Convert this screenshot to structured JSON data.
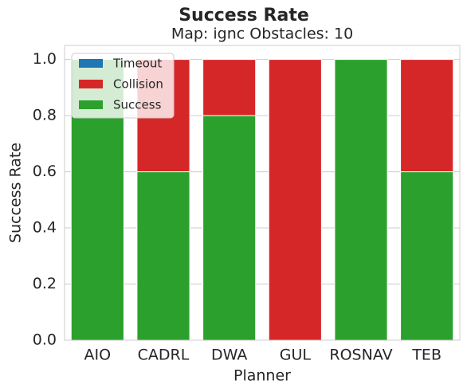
{
  "chart_data": {
    "type": "stacked_bar",
    "title": "Success Rate",
    "subtitle": "Map: ignc Obstacles: 10",
    "x_label": "Planner",
    "y_label": "Success Rate",
    "categories": [
      "AIO",
      "CADRL",
      "DWA",
      "GUL",
      "ROSNAV",
      "TEB"
    ],
    "series": [
      {
        "name": "Timeout",
        "color": "#1f77b4",
        "values": [
          0,
          0,
          0,
          0,
          0,
          0
        ]
      },
      {
        "name": "Collision",
        "color": "#d62728",
        "values": [
          0,
          0.4,
          0.2,
          1.0,
          0,
          0.4
        ]
      },
      {
        "name": "Success",
        "color": "#2ca02c",
        "values": [
          1.0,
          0.6,
          0.8,
          0,
          1.0,
          0.6
        ]
      }
    ],
    "ylim": [
      0,
      1.05
    ],
    "yticks": [
      {
        "value": 0,
        "label": "0.0"
      },
      {
        "value": 0.2,
        "label": "0.2"
      },
      {
        "value": 0.4,
        "label": "0.4"
      },
      {
        "value": 0.6,
        "label": "0.6"
      },
      {
        "value": 0.8,
        "label": "0.8"
      },
      {
        "value": 1.0,
        "label": "1.0"
      }
    ],
    "grid": true,
    "legend": "upper left"
  }
}
